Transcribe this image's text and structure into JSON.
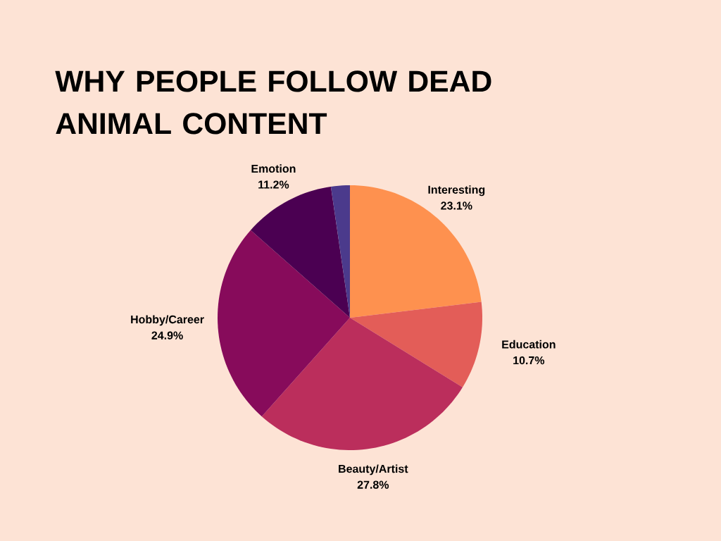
{
  "chart_data": {
    "type": "pie",
    "title": "WHY PEOPLE FOLLOW DEAD ANIMAL CONTENT",
    "categories": [
      "Interesting",
      "Education",
      "Beauty/Artist",
      "Hobby/Career",
      "Emotion",
      null
    ],
    "values": [
      23.1,
      10.7,
      27.8,
      24.9,
      11.2,
      2.3
    ],
    "colors": [
      "#fe914f",
      "#e35d58",
      "#bb2e5c",
      "#870b5b",
      "#4b0052",
      "#4b3a8c"
    ],
    "value_labels": [
      "23.1%",
      "10.7%",
      "27.8%",
      "24.9%",
      "11.2%",
      null
    ]
  }
}
